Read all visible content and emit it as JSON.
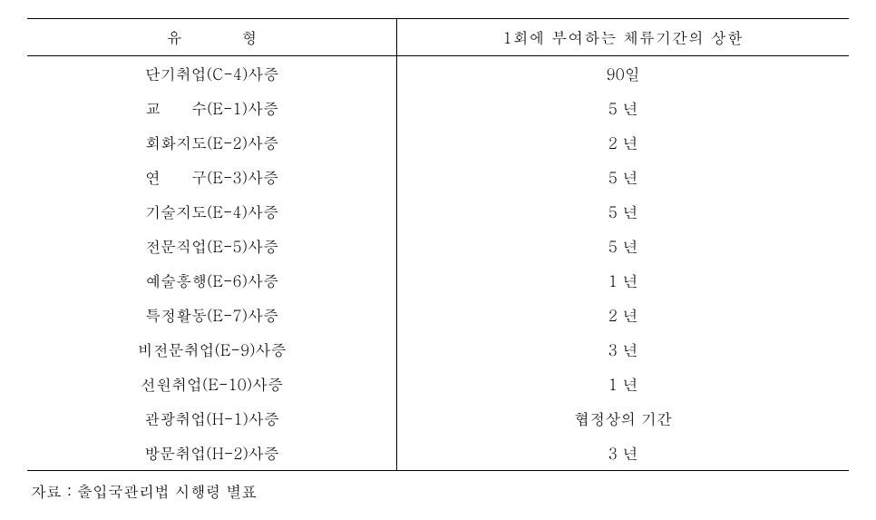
{
  "table": {
    "header": {
      "col1": "유 형",
      "col2": "1회에 부여하는 체류기간의 상한"
    },
    "rows": [
      {
        "type": "단기취업(C-4)사증",
        "duration": "90일"
      },
      {
        "type": "교　　수(E-1)사증",
        "duration": "5 년"
      },
      {
        "type": "회화지도(E-2)사증",
        "duration": "2 년"
      },
      {
        "type": "연　　구(E-3)사증",
        "duration": "5 년"
      },
      {
        "type": "기술지도(E-4)사증",
        "duration": "5 년"
      },
      {
        "type": "전문직업(E-5)사증",
        "duration": "5 년"
      },
      {
        "type": "예술흥행(E-6)사증",
        "duration": "1 년"
      },
      {
        "type": "특정활동(E-7)사증",
        "duration": "2 년"
      },
      {
        "type": "비전문취업(E-9)사증",
        "duration": "3 년"
      },
      {
        "type": "선원취업(E-10)사증",
        "duration": "1 년"
      },
      {
        "type": "관광취업(H-1)사증",
        "duration": "협정상의 기간"
      },
      {
        "type": "방문취업(H-2)사증",
        "duration": "3 년"
      }
    ]
  },
  "footnote": "자료 : 출입국관리법 시행령 별표"
}
